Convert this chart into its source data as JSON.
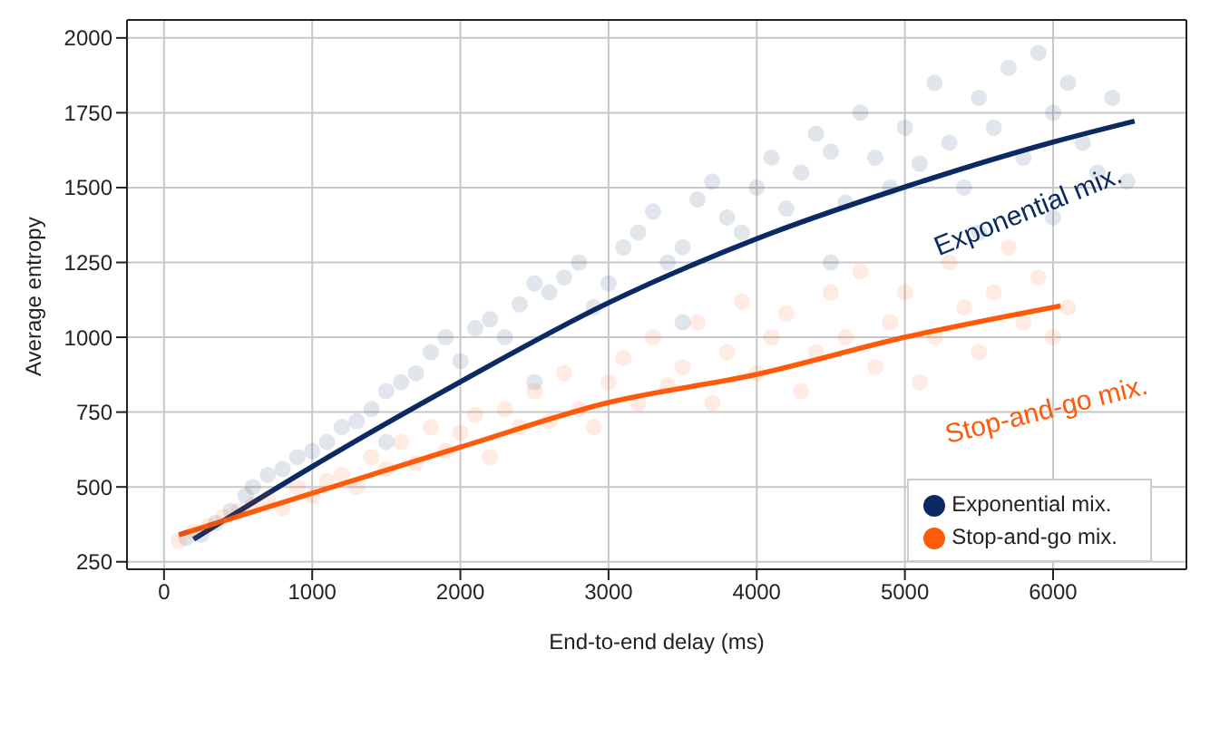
{
  "chart_data": {
    "type": "scatter",
    "xlabel": "End-to-end delay (ms)",
    "ylabel": "Average entropy",
    "xlim": [
      -250,
      6900
    ],
    "ylim": [
      225,
      2060
    ],
    "xticks": [
      0,
      1000,
      2000,
      3000,
      4000,
      5000,
      6000
    ],
    "yticks": [
      250,
      500,
      750,
      1000,
      1250,
      1500,
      1750,
      2000
    ],
    "grid": true,
    "legend": "bottom right",
    "line_style": "solid",
    "series": [
      {
        "name": "Exponential mix.",
        "marker": "circle",
        "color": "#0b2a63",
        "x": [
          150,
          250,
          350,
          450,
          550,
          600,
          700,
          800,
          900,
          1000,
          1100,
          1200,
          1300,
          1400,
          1500,
          1600,
          1700,
          1800,
          1900,
          2000,
          2100,
          2200,
          2300,
          2400,
          2500,
          2600,
          2700,
          2800,
          2900,
          3000,
          3100,
          3200,
          3300,
          3400,
          3500,
          3600,
          3700,
          3800,
          3900,
          4000,
          4100,
          4200,
          4300,
          4400,
          4500,
          4600,
          4700,
          4800,
          4900,
          5000,
          5100,
          5200,
          5300,
          5400,
          5500,
          5600,
          5700,
          5800,
          5900,
          6000,
          6100,
          6200,
          6300,
          6400,
          6500,
          1500,
          2500,
          3500,
          4500,
          5500,
          6000
        ],
        "values": [
          330,
          340,
          380,
          420,
          470,
          500,
          540,
          560,
          600,
          620,
          650,
          700,
          720,
          760,
          820,
          850,
          880,
          950,
          1000,
          920,
          1030,
          1060,
          1000,
          1110,
          1180,
          1150,
          1200,
          1250,
          1100,
          1180,
          1300,
          1350,
          1420,
          1250,
          1300,
          1460,
          1520,
          1400,
          1350,
          1500,
          1600,
          1430,
          1550,
          1680,
          1620,
          1450,
          1750,
          1600,
          1500,
          1700,
          1580,
          1850,
          1650,
          1500,
          1800,
          1700,
          1900,
          1600,
          1950,
          1750,
          1850,
          1650,
          1550,
          1800,
          1520,
          650,
          850,
          1050,
          1250,
          1350,
          1400
        ]
      },
      {
        "name": "Stop-and-go mix.",
        "marker": "circle",
        "color": "#ff5a0a",
        "x": [
          100,
          200,
          300,
          400,
          500,
          600,
          700,
          800,
          900,
          1000,
          1100,
          1200,
          1300,
          1400,
          1500,
          1600,
          1700,
          1800,
          1900,
          2000,
          2100,
          2200,
          2300,
          2400,
          2500,
          2600,
          2700,
          2800,
          2900,
          3000,
          3100,
          3200,
          3300,
          3400,
          3500,
          3600,
          3700,
          3800,
          3900,
          4000,
          4100,
          4200,
          4300,
          4400,
          4500,
          4600,
          4700,
          4800,
          4900,
          5000,
          5100,
          5200,
          5300,
          5400,
          5500,
          5600,
          5700,
          5800,
          5900,
          6000,
          6100
        ],
        "values": [
          320,
          350,
          370,
          400,
          420,
          440,
          460,
          430,
          500,
          470,
          520,
          540,
          500,
          600,
          560,
          650,
          580,
          700,
          620,
          680,
          740,
          600,
          760,
          700,
          820,
          720,
          880,
          760,
          700,
          850,
          930,
          780,
          1000,
          840,
          900,
          1050,
          780,
          950,
          1120,
          880,
          1000,
          1080,
          820,
          950,
          1150,
          1000,
          1220,
          900,
          1050,
          1150,
          850,
          1000,
          1250,
          1100,
          950,
          1150,
          1300,
          1050,
          1200,
          1000,
          1100
        ]
      },
      {
        "type": "line",
        "marker": "none",
        "color": "#0b2a63",
        "x": [
          200,
          1000,
          2000,
          3000,
          4000,
          5000,
          6000,
          6550
        ],
        "values": [
          325,
          568,
          851,
          1115,
          1329,
          1502,
          1652,
          1722
        ]
      },
      {
        "type": "line",
        "marker": "none",
        "color": "#ff5a0a",
        "x": [
          100,
          1000,
          2000,
          3000,
          4000,
          5000,
          6050
        ],
        "values": [
          340,
          479,
          633,
          782,
          876,
          1000,
          1105
        ]
      }
    ],
    "annotations": [
      "Exponential mix.",
      "Stop-and-go mix."
    ]
  }
}
